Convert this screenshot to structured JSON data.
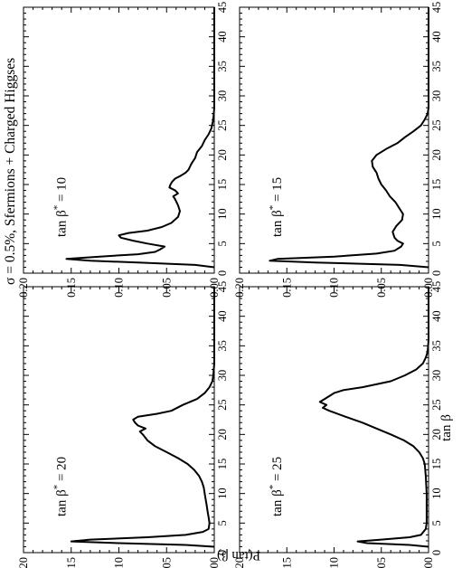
{
  "figure": {
    "title": "σ = 0.5%, Sfermions + Charged Higgses",
    "ylabel": "P(tan β)",
    "xlabel": "tan β"
  },
  "chart_data": [
    {
      "type": "line",
      "panel": "tan β* = 10",
      "annotation_prefix": "tan β",
      "annotation_sup": "*",
      "annotation_suffix": " = 10",
      "xlim": [
        0,
        45
      ],
      "ylim": [
        0,
        0.2
      ],
      "xticks": [
        "0",
        "5",
        "10",
        "15",
        "20",
        "25",
        "30",
        "35",
        "40",
        "45"
      ],
      "yticks": [
        "0.00",
        "0.05",
        "0.10",
        "0.15",
        "0.20"
      ],
      "points": [
        [
          1,
          0
        ],
        [
          1.4,
          0.02
        ],
        [
          1.8,
          0.08
        ],
        [
          2.1,
          0.13
        ],
        [
          2.4,
          0.155
        ],
        [
          2.8,
          0.12
        ],
        [
          3.2,
          0.08
        ],
        [
          3.6,
          0.062
        ],
        [
          4,
          0.057
        ],
        [
          4.5,
          0.052
        ],
        [
          5,
          0.07
        ],
        [
          5.5,
          0.085
        ],
        [
          6,
          0.098
        ],
        [
          6.4,
          0.1
        ],
        [
          6.8,
          0.09
        ],
        [
          7.2,
          0.07
        ],
        [
          7.8,
          0.055
        ],
        [
          8.5,
          0.045
        ],
        [
          9.5,
          0.038
        ],
        [
          10.5,
          0.036
        ],
        [
          11.5,
          0.038
        ],
        [
          12.5,
          0.041
        ],
        [
          13,
          0.043
        ],
        [
          13.5,
          0.038
        ],
        [
          14,
          0.041
        ],
        [
          14.5,
          0.047
        ],
        [
          15,
          0.046
        ],
        [
          15.5,
          0.044
        ],
        [
          16,
          0.041
        ],
        [
          16.5,
          0.035
        ],
        [
          17,
          0.03
        ],
        [
          17.5,
          0.027
        ],
        [
          18.5,
          0.024
        ],
        [
          19.5,
          0.02
        ],
        [
          20.5,
          0.018
        ],
        [
          21.5,
          0.013
        ],
        [
          22.5,
          0.01
        ],
        [
          23.5,
          0.006
        ],
        [
          24.5,
          0.003
        ],
        [
          26,
          0.001
        ],
        [
          28,
          0
        ],
        [
          45,
          0
        ]
      ]
    },
    {
      "type": "line",
      "panel": "tan β* = 15",
      "annotation_prefix": "tan β",
      "annotation_sup": "*",
      "annotation_suffix": " = 15",
      "xlim": [
        0,
        45
      ],
      "ylim": [
        0,
        0.2
      ],
      "xticks": [
        "0",
        "5",
        "10",
        "15",
        "20",
        "25",
        "30",
        "35",
        "40",
        "45"
      ],
      "yticks": [
        "0.00",
        "0.05",
        "0.10",
        "0.15",
        "0.20"
      ],
      "points": [
        [
          1,
          0
        ],
        [
          1.4,
          0.03
        ],
        [
          1.8,
          0.12
        ],
        [
          2.1,
          0.168
        ],
        [
          2.4,
          0.16
        ],
        [
          2.8,
          0.1
        ],
        [
          3.3,
          0.055
        ],
        [
          3.8,
          0.036
        ],
        [
          4.5,
          0.029
        ],
        [
          5,
          0.027
        ],
        [
          5.5,
          0.033
        ],
        [
          6,
          0.036
        ],
        [
          7,
          0.038
        ],
        [
          8,
          0.034
        ],
        [
          9,
          0.028
        ],
        [
          10,
          0.027
        ],
        [
          11,
          0.031
        ],
        [
          12,
          0.035
        ],
        [
          13,
          0.041
        ],
        [
          14,
          0.045
        ],
        [
          15,
          0.05
        ],
        [
          16,
          0.053
        ],
        [
          17,
          0.055
        ],
        [
          18,
          0.059
        ],
        [
          19,
          0.06
        ],
        [
          20,
          0.055
        ],
        [
          21,
          0.045
        ],
        [
          22,
          0.033
        ],
        [
          23,
          0.025
        ],
        [
          24,
          0.016
        ],
        [
          25,
          0.008
        ],
        [
          26,
          0.004
        ],
        [
          27,
          0.001
        ],
        [
          28,
          0
        ],
        [
          45,
          0
        ]
      ]
    },
    {
      "type": "line",
      "panel": "tan β* = 20",
      "annotation_prefix": "tan β",
      "annotation_sup": "*",
      "annotation_suffix": " = 20",
      "xlim": [
        0,
        45
      ],
      "ylim": [
        0,
        0.2
      ],
      "xticks": [
        "0",
        "5",
        "10",
        "15",
        "20",
        "25",
        "30",
        "35",
        "40",
        "45"
      ],
      "yticks": [
        "0.00",
        "0.05",
        "0.10",
        "0.15",
        "0.20"
      ],
      "points": [
        [
          1,
          0
        ],
        [
          1.3,
          0.03
        ],
        [
          1.6,
          0.1
        ],
        [
          1.9,
          0.15
        ],
        [
          2.2,
          0.13
        ],
        [
          2.6,
          0.07
        ],
        [
          3,
          0.03
        ],
        [
          3.5,
          0.012
        ],
        [
          4,
          0.006
        ],
        [
          5,
          0.005
        ],
        [
          6,
          0.006
        ],
        [
          7,
          0.007
        ],
        [
          8,
          0.008
        ],
        [
          9,
          0.009
        ],
        [
          10,
          0.01
        ],
        [
          11,
          0.011
        ],
        [
          12,
          0.013
        ],
        [
          13,
          0.016
        ],
        [
          14,
          0.021
        ],
        [
          15,
          0.028
        ],
        [
          16,
          0.038
        ],
        [
          17,
          0.05
        ],
        [
          18,
          0.062
        ],
        [
          19,
          0.07
        ],
        [
          20,
          0.075
        ],
        [
          20.5,
          0.078
        ],
        [
          21,
          0.072
        ],
        [
          21.5,
          0.08
        ],
        [
          22,
          0.083
        ],
        [
          22.5,
          0.085
        ],
        [
          23,
          0.08
        ],
        [
          23.5,
          0.06
        ],
        [
          24,
          0.045
        ],
        [
          25,
          0.033
        ],
        [
          26,
          0.018
        ],
        [
          27,
          0.01
        ],
        [
          28,
          0.005
        ],
        [
          29,
          0.002
        ],
        [
          30,
          0.001
        ],
        [
          32,
          0
        ],
        [
          45,
          0
        ]
      ]
    },
    {
      "type": "line",
      "panel": "tan β* = 25",
      "annotation_prefix": "tan β",
      "annotation_sup": "*",
      "annotation_suffix": " = 25",
      "xlim": [
        0,
        45
      ],
      "ylim": [
        0,
        0.2
      ],
      "xticks": [
        "0",
        "5",
        "10",
        "15",
        "20",
        "25",
        "30",
        "35",
        "40",
        "45"
      ],
      "yticks": [
        "0.00",
        "0.05",
        "0.10",
        "0.15",
        "0.20"
      ],
      "points": [
        [
          1,
          0
        ],
        [
          1.3,
          0.02
        ],
        [
          1.6,
          0.065
        ],
        [
          1.9,
          0.075
        ],
        [
          2.2,
          0.05
        ],
        [
          2.6,
          0.02
        ],
        [
          3,
          0.008
        ],
        [
          4,
          0.003
        ],
        [
          5,
          0.002
        ],
        [
          10,
          0.002
        ],
        [
          13,
          0.003
        ],
        [
          15,
          0.004
        ],
        [
          16,
          0.006
        ],
        [
          17,
          0.01
        ],
        [
          18,
          0.016
        ],
        [
          19,
          0.026
        ],
        [
          20,
          0.04
        ],
        [
          21,
          0.055
        ],
        [
          22,
          0.07
        ],
        [
          23,
          0.088
        ],
        [
          24,
          0.105
        ],
        [
          24.5,
          0.112
        ],
        [
          25,
          0.108
        ],
        [
          25.5,
          0.115
        ],
        [
          26,
          0.11
        ],
        [
          27,
          0.1
        ],
        [
          27.5,
          0.09
        ],
        [
          28,
          0.07
        ],
        [
          29,
          0.04
        ],
        [
          30,
          0.025
        ],
        [
          31,
          0.013
        ],
        [
          32,
          0.006
        ],
        [
          33,
          0.003
        ],
        [
          34,
          0.001
        ],
        [
          36,
          0
        ],
        [
          45,
          0
        ]
      ]
    }
  ]
}
